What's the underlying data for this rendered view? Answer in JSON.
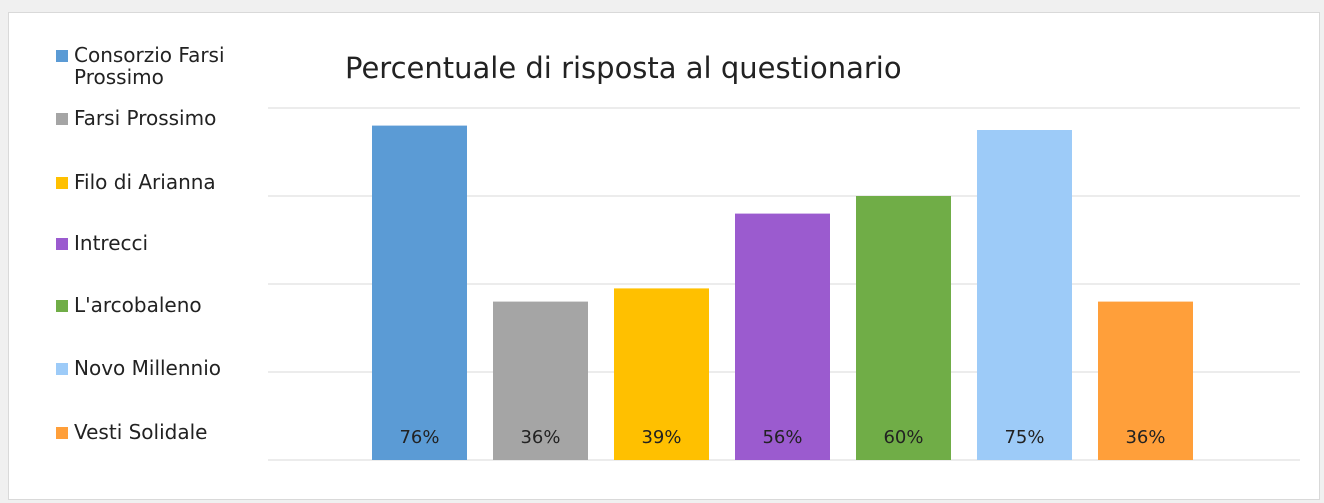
{
  "chart_data": {
    "type": "bar",
    "title": "Percentuale di risposta al questionario",
    "categories": [
      "Consorzio Farsi Prossimo",
      "Farsi Prossimo",
      "Filo di Arianna",
      "Intrecci",
      "L'arcobaleno",
      "Novo Millennio",
      "Vesti Solidale"
    ],
    "values": [
      76,
      36,
      39,
      56,
      60,
      75,
      36
    ],
    "value_labels": [
      "76%",
      "36%",
      "39%",
      "56%",
      "60%",
      "75%",
      "36%"
    ],
    "colors": [
      "#5b9bd5",
      "#a5a5a5",
      "#ffc000",
      "#9b5bcf",
      "#70ad47",
      "#9dcbf8",
      "#ff9f3a"
    ],
    "ylim": [
      0,
      80
    ],
    "yticks": [
      0,
      20,
      40,
      60,
      80
    ],
    "grid": true
  }
}
